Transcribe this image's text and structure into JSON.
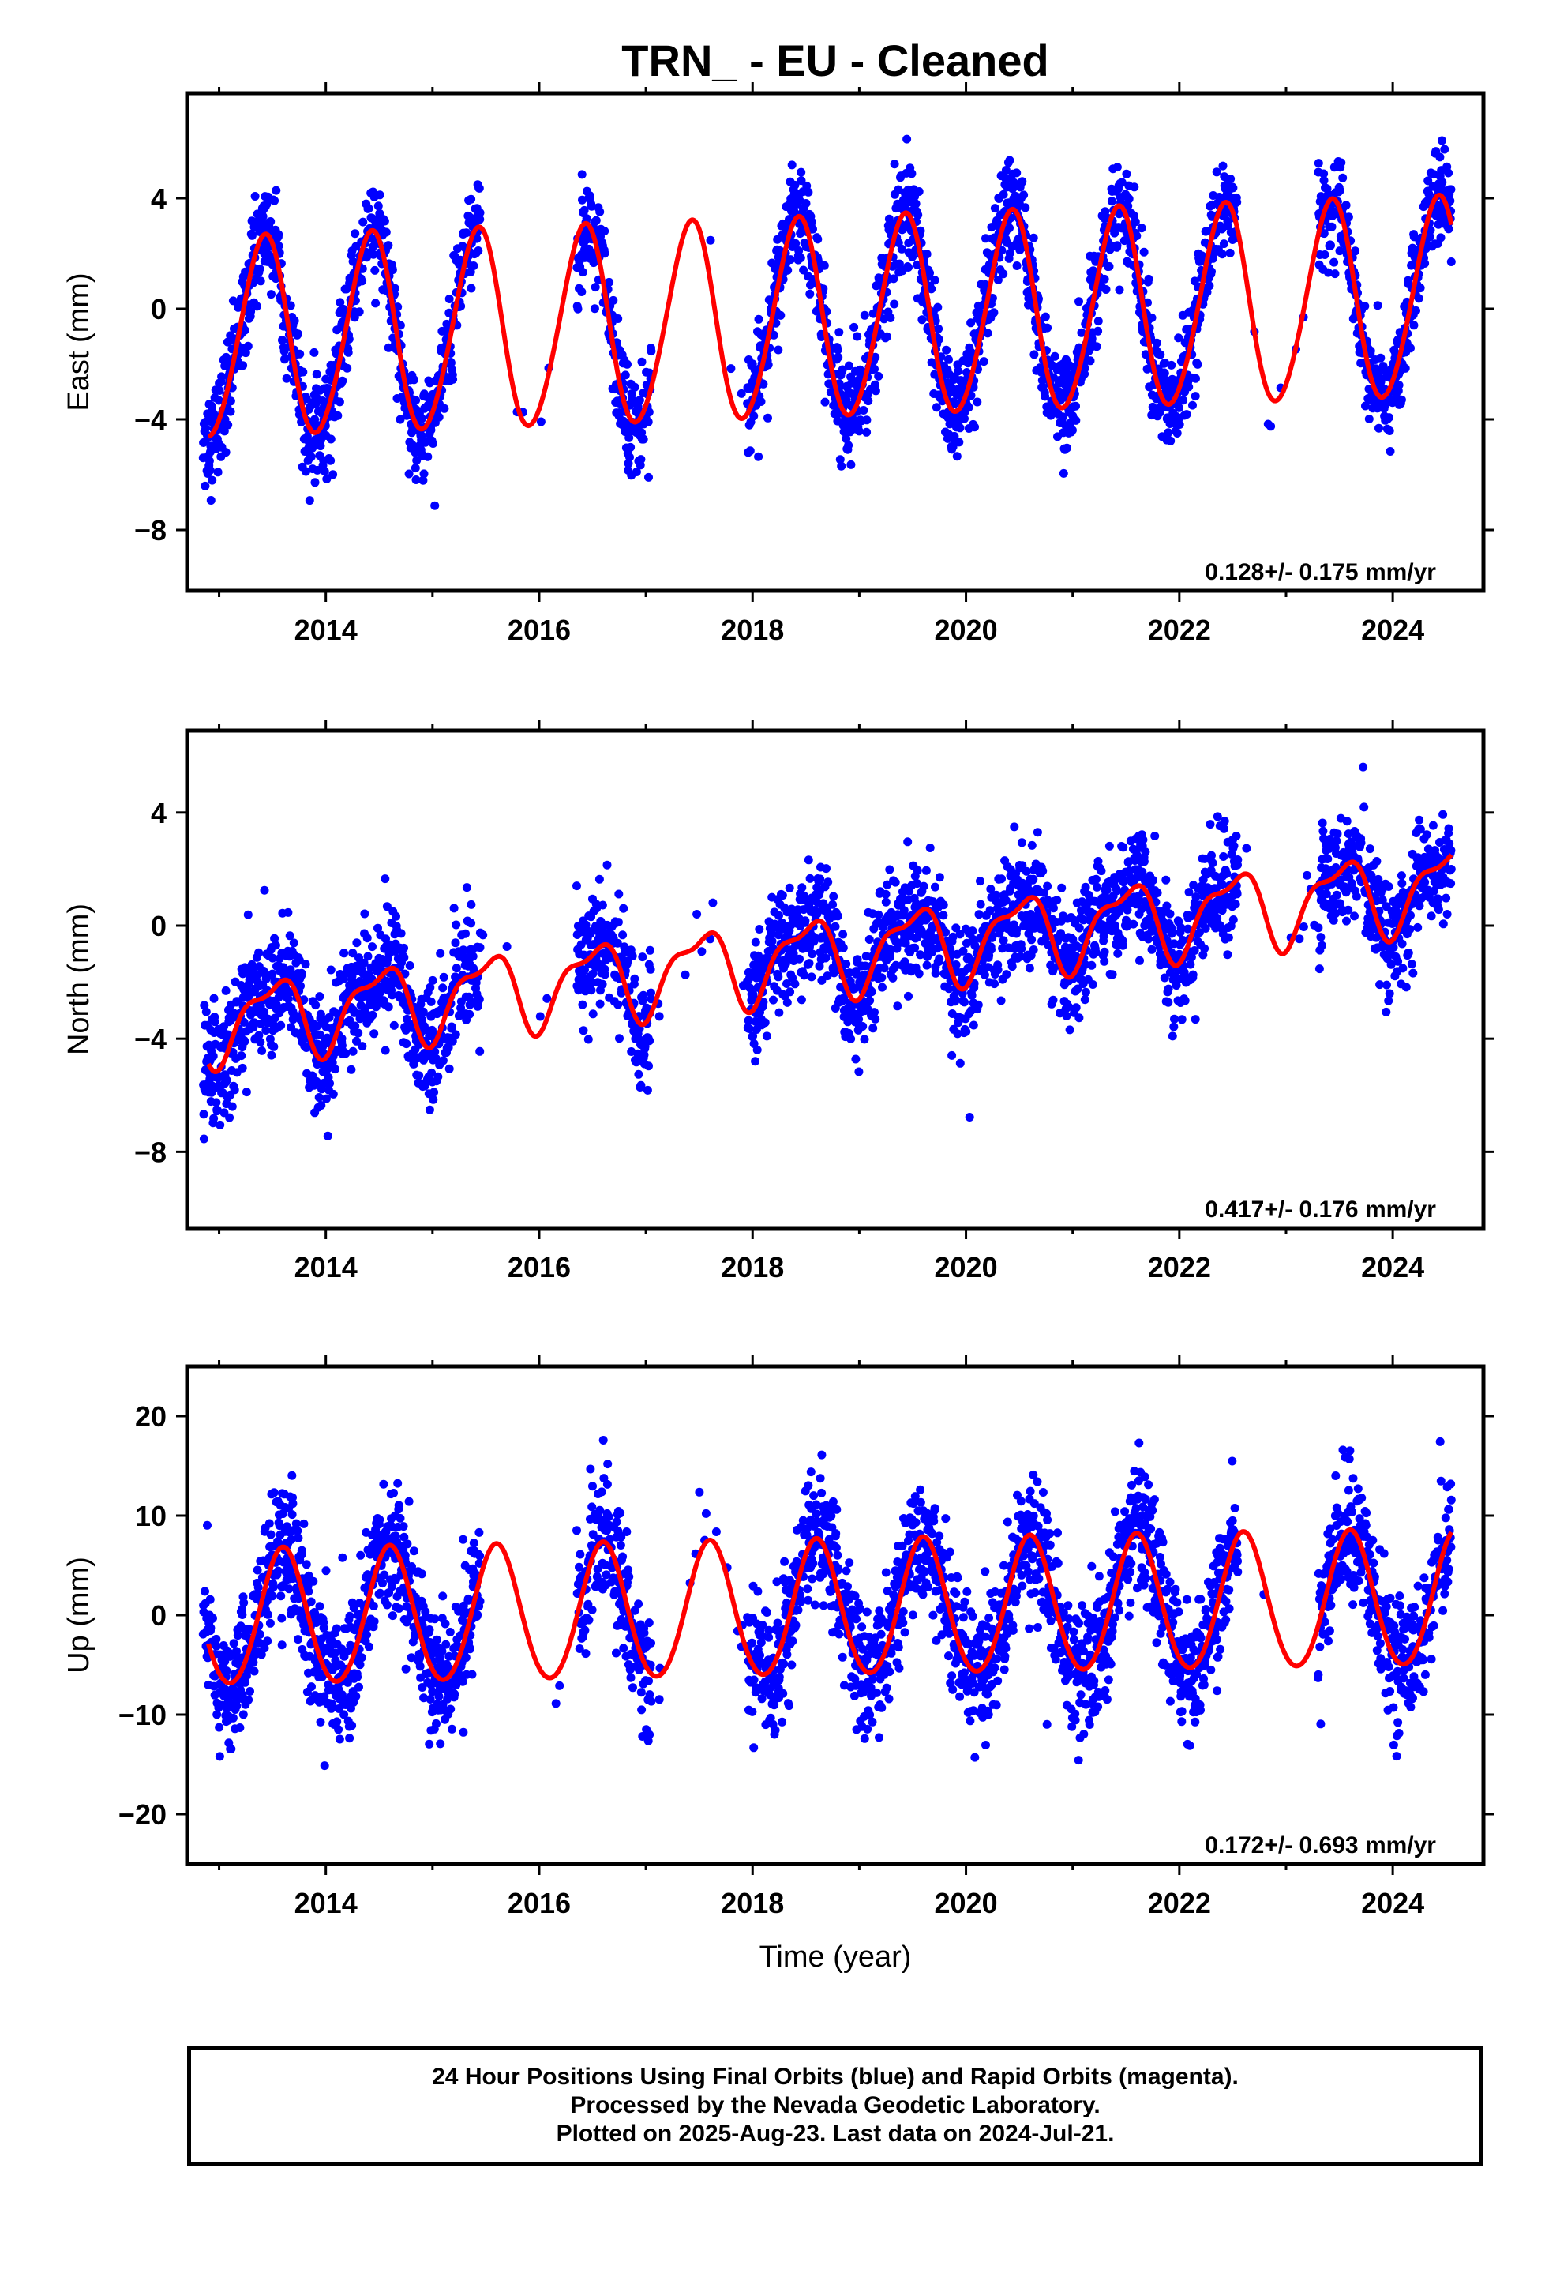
{
  "title": "TRN_  - EU - Cleaned",
  "xlabel": "Time (year)",
  "colors": {
    "final_orbits": "#0000ff",
    "model": "#ff0000",
    "frame": "#000000"
  },
  "footer": {
    "line1": "24 Hour Positions Using Final Orbits (blue) and Rapid Orbits (magenta).",
    "line2": "Processed by the Nevada Geodetic Laboratory.",
    "line3": "Plotted on 2025-Aug-23. Last data on 2024-Jul-21."
  },
  "chart_data": [
    {
      "type": "scatter",
      "panel": "east",
      "ylabel": "East (mm)",
      "xlim": [
        2012.7,
        2024.85
      ],
      "ylim": [
        -10.2,
        7.8
      ],
      "xticks": [
        2014,
        2016,
        2018,
        2020,
        2022,
        2024
      ],
      "yticks": [
        -8,
        -4,
        0,
        4
      ],
      "rate_text": "0.128+/- 0.175 mm/yr",
      "model": {
        "offset": -0.4,
        "trend": 0.128,
        "annual_amp": 3.6,
        "annual_phase_peak": 0.42,
        "semi_amp": 0.25,
        "semi_phase_peak": 0.0
      },
      "noise_sd": 0.9,
      "data_gaps": [
        [
          2015.45,
          2016.35
        ],
        [
          2017.05,
          2017.95
        ],
        [
          2022.55,
          2023.3
        ]
      ]
    },
    {
      "type": "scatter",
      "panel": "north",
      "ylabel": "North (mm)",
      "xlim": [
        2012.7,
        2024.85
      ],
      "ylim": [
        -10.7,
        6.9
      ],
      "xticks": [
        2014,
        2016,
        2018,
        2020,
        2022,
        2024
      ],
      "yticks": [
        -8,
        -4,
        0,
        4
      ],
      "rate_text": "0.417+/- 0.176 mm/yr",
      "model": {
        "offset": -1.1,
        "trend": 0.417,
        "annual_amp": 1.3,
        "annual_phase_peak": 0.5,
        "semi_amp": 0.5,
        "semi_phase_peak": 0.2
      },
      "noise_sd": 1.0,
      "data_gaps": [
        [
          2015.45,
          2016.35
        ],
        [
          2017.05,
          2017.95
        ],
        [
          2022.55,
          2023.3
        ]
      ]
    },
    {
      "type": "scatter",
      "panel": "up",
      "ylabel": "Up (mm)",
      "xlim": [
        2012.7,
        2024.85
      ],
      "ylim": [
        -25,
        25
      ],
      "xticks": [
        2014,
        2016,
        2018,
        2020,
        2022,
        2024
      ],
      "yticks": [
        -20,
        -10,
        0,
        10,
        20
      ],
      "rate_text": "0.172+/- 0.693 mm/yr",
      "model": {
        "offset": 0.5,
        "trend": 0.172,
        "annual_amp": 6.8,
        "annual_phase_peak": 0.6,
        "semi_amp": 0.4,
        "semi_phase_peak": 0.1
      },
      "noise_sd": 3.2,
      "data_gaps": [
        [
          2015.45,
          2016.35
        ],
        [
          2017.05,
          2017.95
        ],
        [
          2022.55,
          2023.3
        ]
      ]
    }
  ]
}
